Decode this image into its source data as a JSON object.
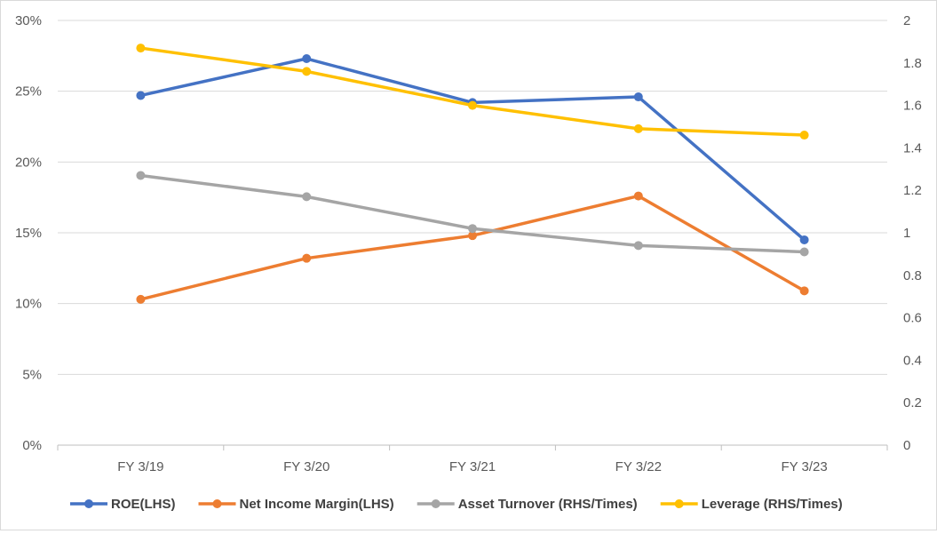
{
  "chart_data": {
    "type": "line",
    "categories": [
      "FY 3/19",
      "FY 3/20",
      "FY 3/21",
      "FY 3/22",
      "FY 3/23"
    ],
    "left_axis": {
      "min": 0,
      "max": 30,
      "ticks": [
        "0%",
        "5%",
        "10%",
        "15%",
        "20%",
        "25%",
        "30%"
      ],
      "unit": "%"
    },
    "right_axis": {
      "min": 0,
      "max": 2,
      "ticks": [
        "0",
        "0.2",
        "0.4",
        "0.6",
        "0.8",
        "1",
        "1.2",
        "1.4",
        "1.6",
        "1.8",
        "2"
      ]
    },
    "grid": true,
    "legend_position": "bottom",
    "series": [
      {
        "name": "ROE(LHS)",
        "axis": "left",
        "color": "#4472C4",
        "values": [
          24.7,
          27.3,
          24.2,
          24.6,
          14.5
        ]
      },
      {
        "name": "Net Income Margin(LHS)",
        "axis": "left",
        "color": "#ED7D31",
        "values": [
          10.3,
          13.2,
          14.8,
          17.6,
          10.9
        ]
      },
      {
        "name": "Asset Turnover (RHS/Times)",
        "axis": "right",
        "color": "#A5A5A5",
        "values": [
          1.27,
          1.17,
          1.02,
          0.94,
          0.91
        ]
      },
      {
        "name": "Leverage (RHS/Times)",
        "axis": "right",
        "color": "#FFC000",
        "values": [
          1.87,
          1.76,
          1.6,
          1.49,
          1.46
        ]
      }
    ]
  }
}
